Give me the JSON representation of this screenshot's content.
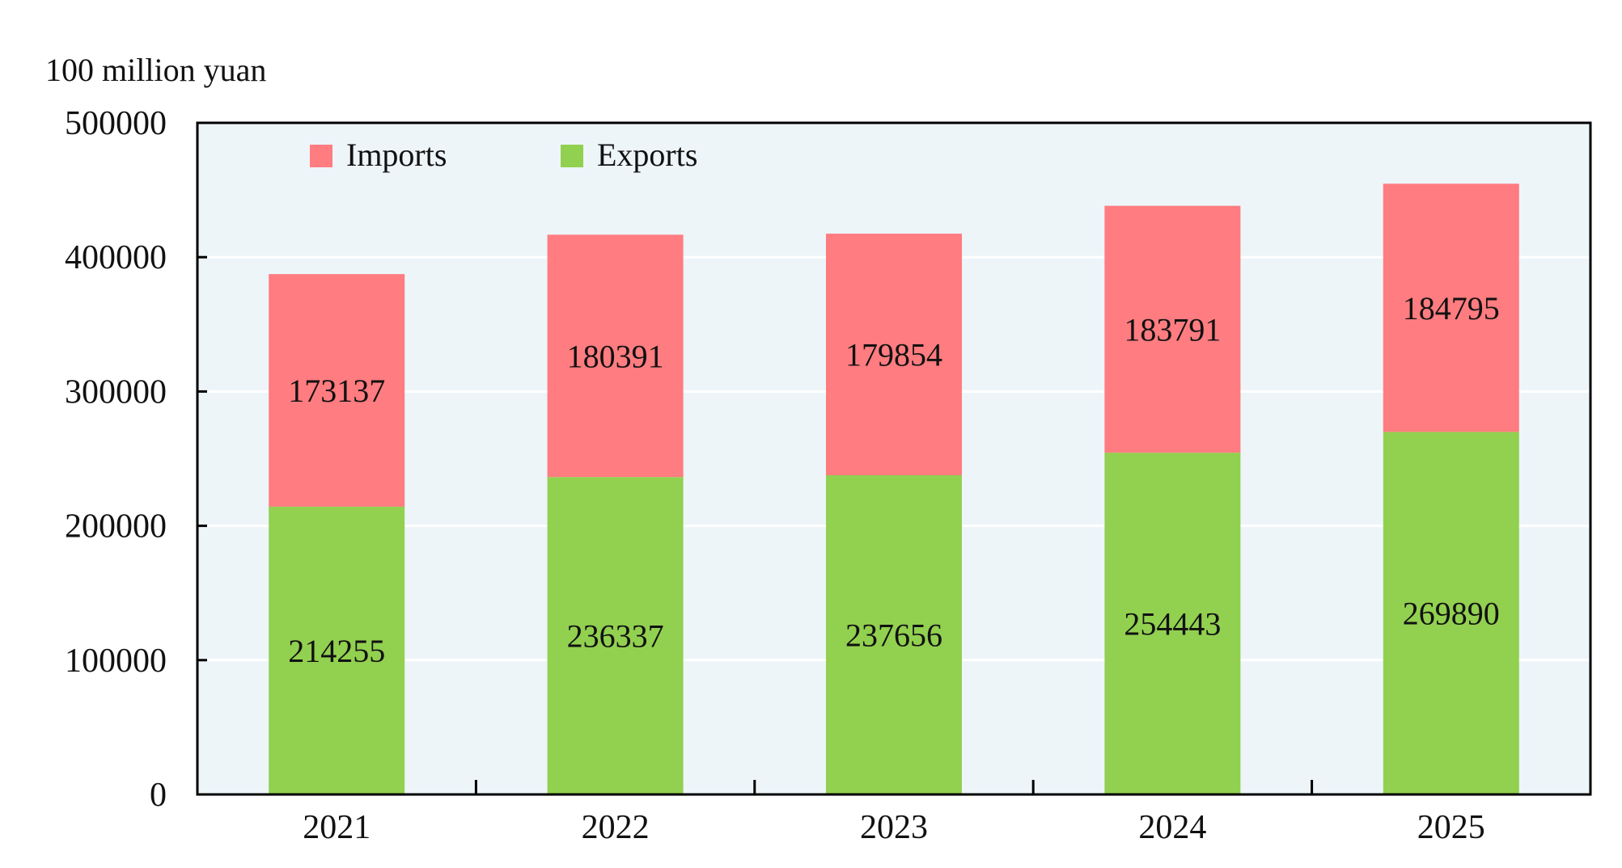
{
  "chart_data": {
    "type": "bar",
    "stacked": true,
    "ylabel": "100 million yuan",
    "ylim": [
      0,
      500000
    ],
    "yticks": [
      0,
      100000,
      200000,
      300000,
      400000,
      500000
    ],
    "ytick_labels": [
      "0",
      "100000",
      "200000",
      "300000",
      "400000",
      "500000"
    ],
    "categories": [
      "2021",
      "2022",
      "2023",
      "2024",
      "2025"
    ],
    "grid": true,
    "legend_position": "top-left",
    "series": [
      {
        "name": "Exports",
        "color": "#92D050",
        "values": [
          214255,
          236337,
          237656,
          254443,
          269890
        ],
        "labels": [
          "214255",
          "236337",
          "237656",
          "254443",
          "269890"
        ]
      },
      {
        "name": "Imports",
        "color": "#FF7C80",
        "values": [
          173137,
          180391,
          179854,
          183791,
          184795
        ],
        "labels": [
          "173137",
          "180391",
          "179854",
          "183791",
          "184795"
        ]
      }
    ],
    "legend": [
      {
        "name": "Imports",
        "color": "#FF7C80"
      },
      {
        "name": "Exports",
        "color": "#92D050"
      }
    ],
    "plot_background": "#EDF5F9",
    "grid_color": "#FFFFFF"
  }
}
